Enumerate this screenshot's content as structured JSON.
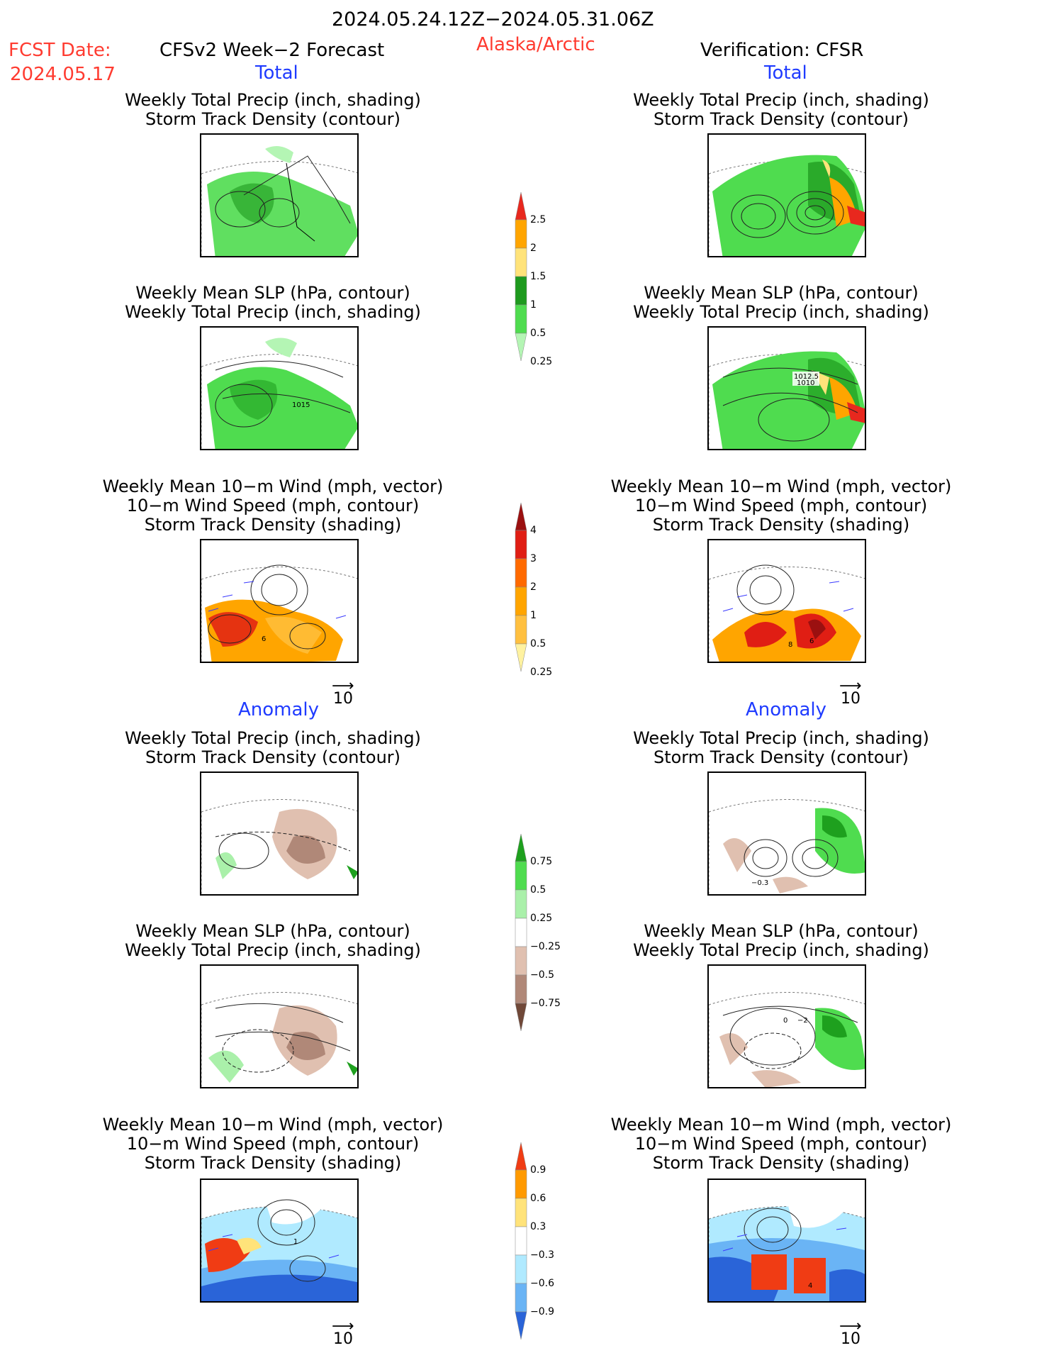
{
  "header": {
    "date_range": "2024.05.24.12Z−2024.05.31.06Z",
    "fcst_label": "FCST Date:",
    "fcst_date": "2024.05.17",
    "forecast_title": "CFSv2 Week−2 Forecast",
    "region": "Alaska/Arctic",
    "verification": "Verification: CFSR"
  },
  "sections": {
    "total": "Total",
    "anomaly": "Anomaly"
  },
  "titles": {
    "precip_storm": "Weekly Total Precip (inch, shading)\nStorm Track Density (contour)",
    "slp_precip": "Weekly Mean SLP (hPa, contour)\nWeekly Total Precip (inch, shading)",
    "wind": "Weekly Mean 10−m Wind (mph, vector)\n10−m Wind Speed (mph, contour)\nStorm Track Density (shading)"
  },
  "panel_labels": {
    "fc_slp_total": "1015",
    "ver_slp_total_a": "1012.5",
    "ver_slp_total_b": "1010",
    "fc_wind_total": "6",
    "ver_wind_total_a": "8",
    "ver_wind_total_b": "6",
    "ver_precip_anom": "−0.3",
    "ver_slp_anom_a": "0",
    "ver_slp_anom_b": "−2",
    "fc_wind_anom": "1",
    "ver_wind_anom": "4"
  },
  "vector_ref": "10",
  "colorbars": {
    "precip_total": {
      "labels": [
        "2.5",
        "2",
        "1.5",
        "1",
        "0.5",
        "0.25"
      ],
      "colors": [
        "#e8281e",
        "#ffa500",
        "#ffe37a",
        "#1e9a1e",
        "#4fdc4f",
        "#b4f5b4"
      ]
    },
    "storm_total": {
      "labels": [
        "4",
        "3",
        "2",
        "1",
        "0.5",
        "0.25"
      ],
      "colors": [
        "#9b1010",
        "#e01e14",
        "#ff6a00",
        "#ffa500",
        "#ffc040",
        "#fff2a0"
      ]
    },
    "precip_anom": {
      "labels": [
        "0.75",
        "0.5",
        "0.25",
        "−0.25",
        "−0.5",
        "−0.75"
      ],
      "colors": [
        "#1ea01e",
        "#4fdc4f",
        "#aaf0aa",
        "#ffffff",
        "#e0c0b0",
        "#b08878",
        "#704838"
      ]
    },
    "storm_anom": {
      "labels": [
        "0.9",
        "0.6",
        "0.3",
        "−0.3",
        "−0.6",
        "−0.9"
      ],
      "colors": [
        "#f03c14",
        "#ff9a00",
        "#ffe37a",
        "#ffffff",
        "#b0eaff",
        "#6ab4f5",
        "#2a64d8"
      ]
    }
  }
}
